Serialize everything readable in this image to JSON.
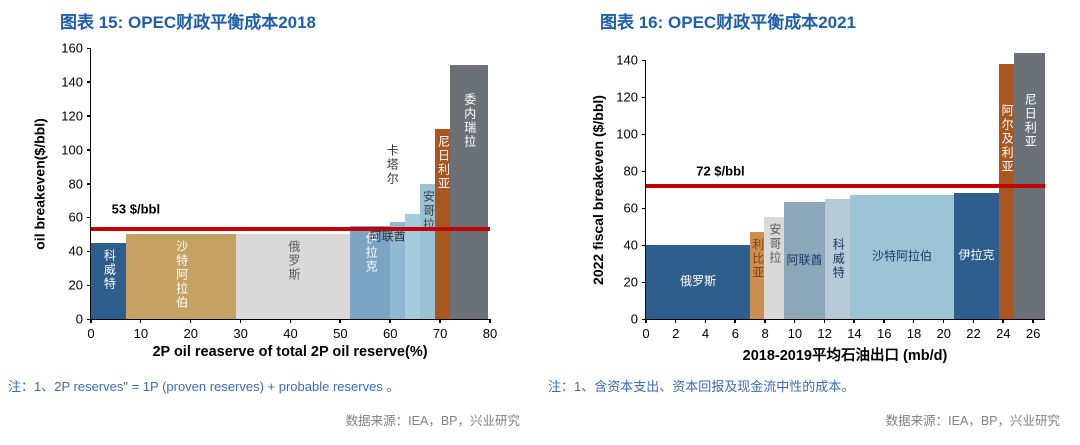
{
  "colors": {
    "title": "#1f5fa8",
    "note": "#3b6cb5",
    "source": "#808080",
    "refline": "#c00000",
    "axis": "#000000"
  },
  "panels": {
    "left": {
      "note": "注：1、2P reserves\" = 1P (proven reserves) + probable reserves 。",
      "source": "数据来源：IEA，BP，兴业研究"
    },
    "right": {
      "note": "注：1、含资本支出、资本回报及现金流中性的成本。",
      "source": "数据来源：IEA，BP，兴业研究"
    }
  },
  "chart_data": [
    {
      "type": "bar",
      "title": "图表 15: OPEC财政平衡成本2018",
      "xlabel": "2P oil reaserve of total 2P oil reserve(%)",
      "ylabel": "oil breakeven($/bbl)",
      "xlim": [
        0,
        80
      ],
      "ylim": [
        0,
        160
      ],
      "xticks": [
        0,
        10,
        20,
        30,
        40,
        50,
        60,
        70,
        80
      ],
      "yticks": [
        0,
        20,
        40,
        60,
        80,
        100,
        120,
        140,
        160
      ],
      "grid": false,
      "legend": "none",
      "refline": {
        "value": 53,
        "label": "53 $/bbl",
        "label_x": 9,
        "label_y": 65
      },
      "bars": [
        {
          "id": "kuwait",
          "label": "科威特",
          "x0": 0,
          "x1": 7,
          "value": 45,
          "color": "#2e5e8e",
          "text": "#ffffff",
          "mode": "v-top"
        },
        {
          "id": "saudi-arabia",
          "label": "沙特阿拉伯",
          "x0": 7,
          "x1": 29,
          "value": 50,
          "color": "#c5a263",
          "text": "#ffffff",
          "mode": "v-top"
        },
        {
          "id": "russia",
          "label": "俄罗斯",
          "x0": 29,
          "x1": 52,
          "value": 50,
          "color": "#d9d9d9",
          "text": "#595959",
          "mode": "v-top"
        },
        {
          "id": "iraq",
          "label": "伊拉克",
          "x0": 52,
          "x1": 60,
          "value": 55,
          "color": "#7ca4c5",
          "text": "#ffffff",
          "mode": "v-top"
        },
        {
          "id": "uae",
          "label": "",
          "x0": 60,
          "x1": 63,
          "value": 57,
          "color": "#8fb8d2",
          "text": "#333333",
          "mode": "v-top"
        },
        {
          "id": "qatar",
          "label": "",
          "x0": 63,
          "x1": 66,
          "value": 62,
          "color": "#a6cbde",
          "text": "#333333",
          "mode": "v-top"
        },
        {
          "id": "angola",
          "label": "安哥拉",
          "x0": 66,
          "x1": 69,
          "value": 80,
          "color": "#9cc2d6",
          "text": "#404040",
          "mode": "v-top"
        },
        {
          "id": "nigeria",
          "label": "尼日利亚",
          "x0": 69,
          "x1": 72,
          "value": 112,
          "color": "#a7571f",
          "text": "#ffffff",
          "mode": "v-top"
        },
        {
          "id": "venezuela",
          "label": "委内瑞拉",
          "x0": 72,
          "x1": 79.5,
          "value": 150,
          "color": "#6c7077",
          "text": "#ffffff",
          "mode": "v-top",
          "pad": 28
        }
      ],
      "annotations": [
        {
          "id": "uae-label",
          "text": "阿联酋",
          "x": 59.5,
          "y": 49,
          "mode": "h",
          "color": "#333333"
        },
        {
          "id": "qatar-label",
          "text": "卡塔尔",
          "x": 60.5,
          "y": 91,
          "mode": "v",
          "color": "#333333"
        }
      ]
    },
    {
      "type": "bar",
      "title": "图表 16: OPEC财政平衡成本2021",
      "xlabel": "2018-2019平均石油出口 (mb/d)",
      "ylabel": "2022 fiscal breakeven ($/bbl)",
      "xlim": [
        0,
        26.8
      ],
      "ylim": [
        0,
        140
      ],
      "xticks": [
        0,
        2,
        4,
        6,
        8,
        10,
        12,
        14,
        16,
        18,
        20,
        22,
        24,
        26
      ],
      "yticks": [
        0,
        20,
        40,
        60,
        80,
        100,
        120,
        140
      ],
      "grid": false,
      "legend": "none",
      "refline": {
        "value": 72,
        "label": "72 $/bbl",
        "label_x": 5,
        "label_y": 80
      },
      "bars": [
        {
          "id": "russia",
          "label": "俄罗斯",
          "x0": 0,
          "x1": 7,
          "value": 40,
          "color": "#2e5e8e",
          "text": "#ffffff",
          "mode": "h-mid"
        },
        {
          "id": "libya",
          "label": "利比亚",
          "x0": 7,
          "x1": 7.9,
          "value": 47,
          "color": "#c98f4f",
          "text": "#8a3c10",
          "mode": "v-top"
        },
        {
          "id": "angola",
          "label": "安哥拉",
          "x0": 7.9,
          "x1": 9.3,
          "value": 55,
          "color": "#d9d9d9",
          "text": "#595959",
          "mode": "v-top"
        },
        {
          "id": "uae",
          "label": "阿联酋",
          "x0": 9.3,
          "x1": 12,
          "value": 63,
          "color": "#8ca6ba",
          "text": "#1f3864",
          "mode": "h-mid"
        },
        {
          "id": "kuwait",
          "label": "科威特",
          "x0": 12,
          "x1": 13.7,
          "value": 65,
          "color": "#b6cad7",
          "text": "#1f3864",
          "mode": "v-mid"
        },
        {
          "id": "saudi-arabia",
          "label": "沙特阿拉伯",
          "x0": 13.7,
          "x1": 20.7,
          "value": 67,
          "color": "#9cc3d6",
          "text": "#1f3864",
          "mode": "h-mid"
        },
        {
          "id": "iraq",
          "label": "伊拉克",
          "x0": 20.7,
          "x1": 23.7,
          "value": 68,
          "color": "#2e5e8e",
          "text": "#ffffff",
          "mode": "h-mid"
        },
        {
          "id": "algeria",
          "label": "阿尔及利亚",
          "x0": 23.7,
          "x1": 24.7,
          "value": 138,
          "color": "#a7571f",
          "text": "#ffffff",
          "mode": "v-top",
          "pad": 40
        },
        {
          "id": "nigeria",
          "label": "尼日利亚",
          "x0": 24.7,
          "x1": 26.8,
          "value": 144,
          "color": "#6c7077",
          "text": "#ffffff",
          "mode": "v-top",
          "pad": 40
        }
      ],
      "annotations": []
    }
  ]
}
